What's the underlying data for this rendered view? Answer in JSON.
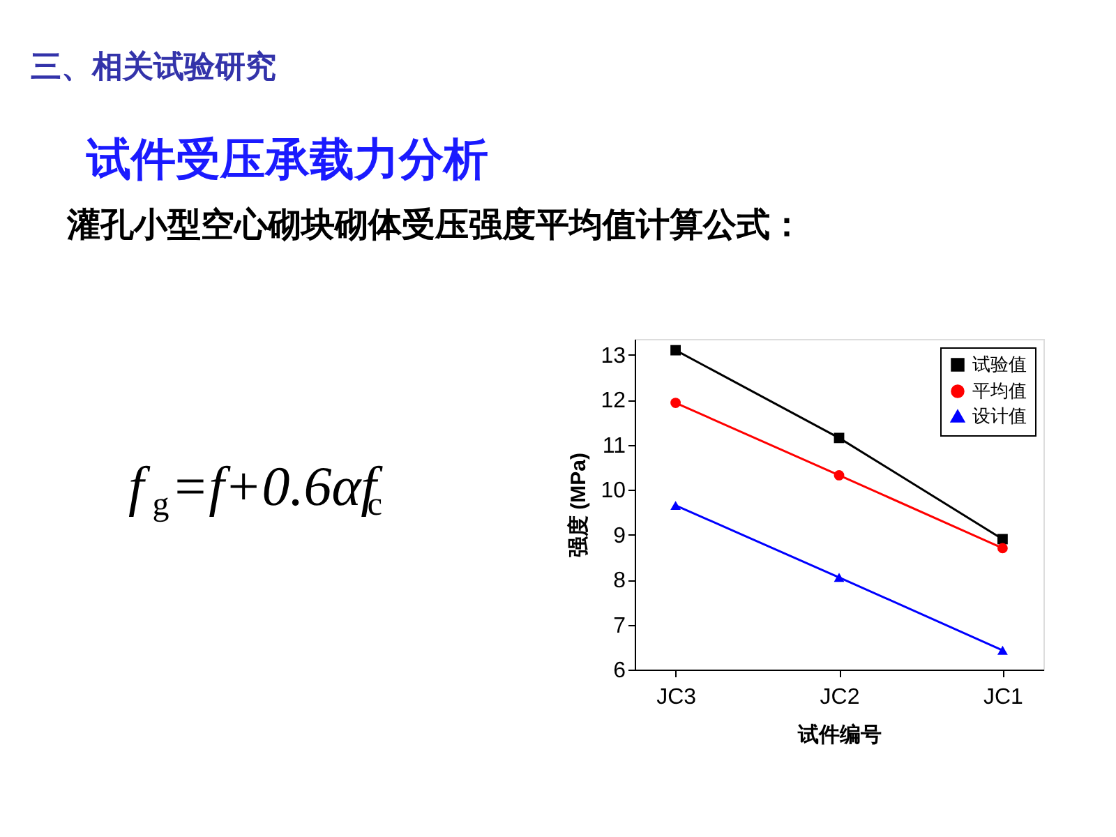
{
  "chart_data": {
    "type": "line",
    "title": "三、相关试验研究",
    "subtitle": "试件受压承载力分析",
    "annotations": [
      "灌孔小型空心砌块砌体受压强度平均值计算公式：",
      "f$_{g}$=f+0.6αf$_{c}$"
    ],
    "xlabel": "试件编号",
    "ylabel": "强度 (MPa)",
    "categories": [
      "JC3",
      "JC2",
      "JC1"
    ],
    "series": [
      {
        "name": "试验值",
        "color": "#000000",
        "marker": "square",
        "values": [
          13.1,
          11.15,
          8.9
        ]
      },
      {
        "name": "平均值",
        "color": "#ff0000",
        "marker": "circle",
        "values": [
          11.93,
          10.32,
          8.7
        ]
      },
      {
        "name": "设计值",
        "color": "#0000ff",
        "marker": "triangle",
        "values": [
          9.65,
          8.05,
          6.43
        ]
      }
    ],
    "ylim": [
      6,
      13.35
    ],
    "yticks": [
      6,
      7,
      8,
      9,
      10,
      11,
      12,
      13
    ],
    "grid": false,
    "legend": "top right",
    "line_style": "solid"
  }
}
